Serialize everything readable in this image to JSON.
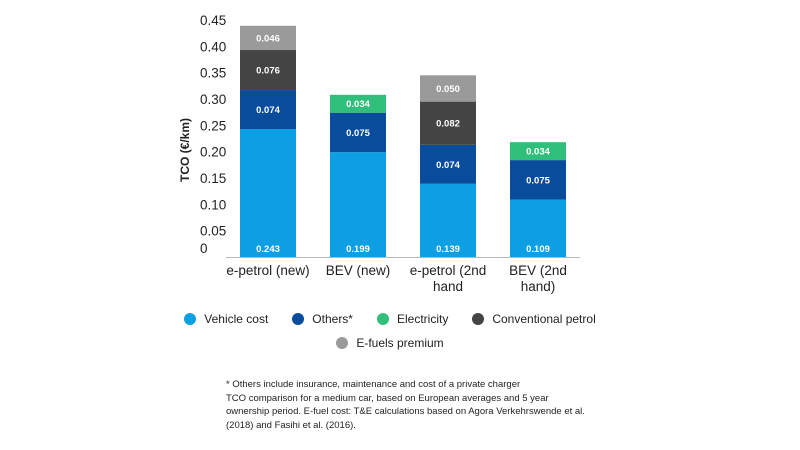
{
  "chart_data": {
    "type": "bar",
    "stacked": true,
    "ylabel": "TCO (€/km)",
    "ylim": [
      0,
      0.45
    ],
    "yticks": [
      "0",
      "0.05",
      "0.10",
      "0.15",
      "0.20",
      "0.25",
      "0.30",
      "0.35",
      "0.40",
      "0.45"
    ],
    "yticks_values": [
      0,
      0.05,
      0.1,
      0.15,
      0.2,
      0.25,
      0.3,
      0.35,
      0.4,
      0.45
    ],
    "grid": false,
    "legend_position": "bottom",
    "categories": [
      [
        "e-petrol (new)"
      ],
      [
        "BEV (new)"
      ],
      [
        "e-petrol (2nd",
        "hand"
      ],
      [
        "BEV (2nd",
        "hand)"
      ]
    ],
    "series": [
      {
        "name": "Vehicle cost",
        "color": "#0d9fe3",
        "values": [
          0.243,
          0.199,
          0.139,
          0.109
        ],
        "labels": [
          "0.243",
          "0.199",
          "0.139",
          "0.109"
        ]
      },
      {
        "name": "Others*",
        "color": "#0a4c9c",
        "values": [
          0.074,
          0.075,
          0.074,
          0.075
        ],
        "labels": [
          "0.074",
          "0.075",
          "0.074",
          "0.075"
        ]
      },
      {
        "name": "Electricity",
        "color": "#2fbf7a",
        "values": [
          0,
          0.034,
          0,
          0.034
        ],
        "labels": [
          "",
          "0.034",
          "",
          "0.034"
        ]
      },
      {
        "name": "Conventional petrol",
        "color": "#444444",
        "values": [
          0.076,
          0,
          0.082,
          0
        ],
        "labels": [
          "0.076",
          "",
          "0.082",
          ""
        ]
      },
      {
        "name": "E-fuels premium",
        "color": "#9a9a9a",
        "values": [
          0.046,
          0,
          0.05,
          0
        ],
        "labels": [
          "0.046",
          "",
          "0.050",
          ""
        ]
      }
    ]
  },
  "legend": {
    "row1": [
      {
        "label": "Vehicle cost",
        "color": "#0d9fe3"
      },
      {
        "label": "Others*",
        "color": "#0a4c9c"
      },
      {
        "label": "Electricity",
        "color": "#2fbf7a"
      },
      {
        "label": "Conventional petrol",
        "color": "#444444"
      }
    ],
    "row2": [
      {
        "label": "E-fuels premium",
        "color": "#9a9a9a"
      }
    ]
  },
  "notes": {
    "line1": "* Others include insurance, maintenance and cost of a private charger",
    "line2": "TCO comparison for a medium car, based on European averages and 5 year ownership period. E-fuel cost: T&E calculations based on Agora Verkehrswende et al. (2018) and Fasihi et al. (2016)."
  }
}
